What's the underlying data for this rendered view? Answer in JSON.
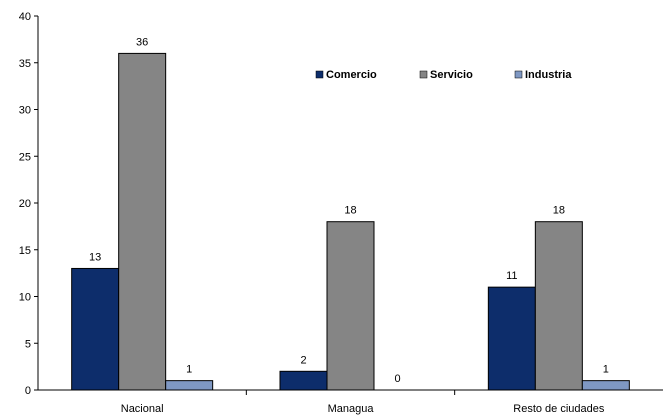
{
  "chart_data": {
    "type": "bar",
    "title": "",
    "xlabel": "",
    "ylabel": "",
    "categories": [
      "Nacional",
      "Managua",
      "Resto de ciudades"
    ],
    "series": [
      {
        "name": "Comercio",
        "values": [
          13,
          2,
          11
        ],
        "color": "#0d2d6b"
      },
      {
        "name": "Servicio",
        "values": [
          36,
          18,
          18
        ],
        "color": "#858585"
      },
      {
        "name": "Industria",
        "values": [
          1,
          0,
          1
        ],
        "color": "#7f98c3"
      }
    ],
    "ylim": [
      0,
      40
    ],
    "yticks": [
      0,
      5,
      10,
      15,
      20,
      25,
      30,
      35,
      40
    ],
    "grid": false,
    "legend_position": "top-right",
    "data_labels": true
  }
}
